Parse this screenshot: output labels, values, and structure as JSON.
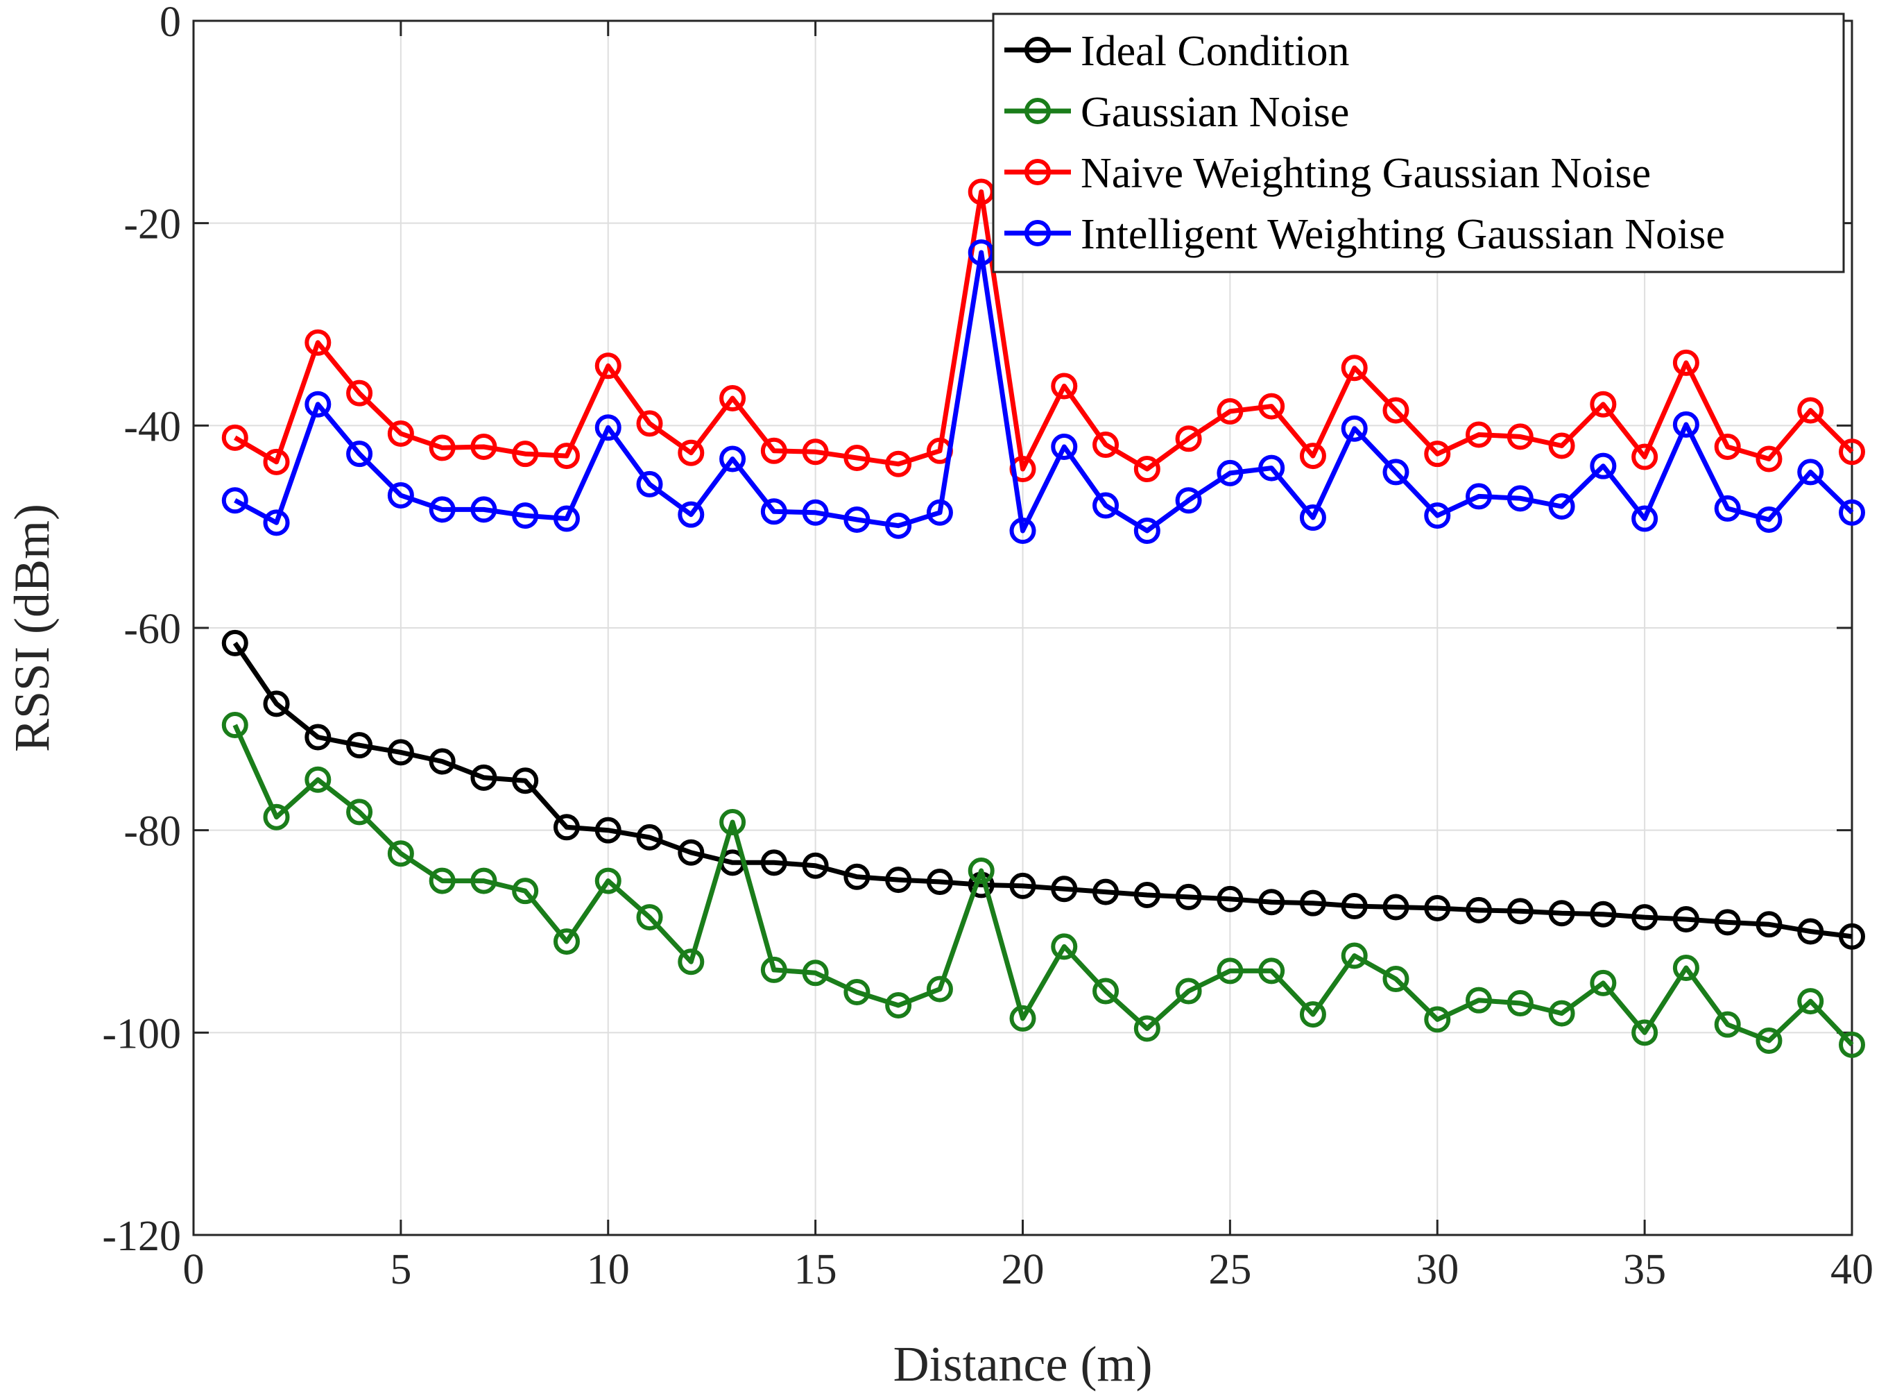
{
  "chart_data": {
    "type": "line",
    "title": "",
    "xlabel": "Distance (m)",
    "ylabel": "RSSI (dBm)",
    "xlim": [
      0,
      40
    ],
    "ylim": [
      -120,
      0
    ],
    "xticks": [
      0,
      5,
      10,
      15,
      20,
      25,
      30,
      35,
      40
    ],
    "yticks": [
      -120,
      -100,
      -80,
      -60,
      -40,
      -20,
      0
    ],
    "grid": true,
    "legend_position": "top-right",
    "x": [
      1,
      2,
      3,
      4,
      5,
      6,
      7,
      8,
      9,
      10,
      11,
      12,
      13,
      14,
      15,
      16,
      17,
      18,
      19,
      20,
      21,
      22,
      23,
      24,
      25,
      26,
      27,
      28,
      29,
      30,
      31,
      32,
      33,
      34,
      35,
      36,
      37,
      38,
      39,
      40
    ],
    "series": [
      {
        "name": "Ideal Condition",
        "color": "#000000",
        "values": [
          -61.5,
          -67.5,
          -70.8,
          -71.6,
          -72.3,
          -73.2,
          -74.8,
          -75.1,
          -79.7,
          -80.0,
          -80.7,
          -82.2,
          -83.2,
          -83.2,
          -83.5,
          -84.6,
          -84.9,
          -85.1,
          -85.4,
          -85.5,
          -85.8,
          -86.1,
          -86.4,
          -86.6,
          -86.8,
          -87.1,
          -87.2,
          -87.5,
          -87.6,
          -87.7,
          -87.9,
          -88.0,
          -88.2,
          -88.3,
          -88.6,
          -88.8,
          -89.1,
          -89.3,
          -90.0,
          -90.5
        ]
      },
      {
        "name": "Gaussian Noise",
        "color": "#1a7d1a",
        "values": [
          -69.6,
          -78.7,
          -75.0,
          -78.2,
          -82.3,
          -85.0,
          -85.0,
          -86.0,
          -91.0,
          -85.0,
          -88.6,
          -93.0,
          -79.2,
          -93.8,
          -94.1,
          -96.0,
          -97.3,
          -95.7,
          -84.0,
          -98.6,
          -91.5,
          -95.9,
          -99.6,
          -95.9,
          -93.9,
          -93.9,
          -98.2,
          -92.4,
          -94.7,
          -98.7,
          -96.8,
          -97.1,
          -98.1,
          -95.1,
          -100.0,
          -93.6,
          -99.2,
          -100.8,
          -96.9,
          -101.2
        ]
      },
      {
        "name": "Naive Weighting Gaussian Noise",
        "color": "#ff0000",
        "values": [
          -41.2,
          -43.6,
          -31.8,
          -36.8,
          -40.8,
          -42.2,
          -42.1,
          -42.8,
          -43.0,
          -34.1,
          -39.8,
          -42.7,
          -37.3,
          -42.5,
          -42.6,
          -43.2,
          -43.8,
          -42.5,
          -16.9,
          -44.3,
          -36.1,
          -41.9,
          -44.3,
          -41.3,
          -38.6,
          -38.1,
          -43.0,
          -34.3,
          -38.5,
          -42.8,
          -40.9,
          -41.1,
          -42.0,
          -37.9,
          -43.1,
          -33.8,
          -42.1,
          -43.3,
          -38.5,
          -42.6
        ]
      },
      {
        "name": "Intelligent Weighting Gaussian Noise",
        "color": "#0000ff",
        "values": [
          -47.4,
          -49.6,
          -37.9,
          -42.8,
          -46.9,
          -48.3,
          -48.3,
          -48.9,
          -49.2,
          -40.2,
          -45.8,
          -48.8,
          -43.3,
          -48.5,
          -48.6,
          -49.3,
          -49.9,
          -48.6,
          -22.9,
          -50.4,
          -42.1,
          -47.9,
          -50.4,
          -47.4,
          -44.7,
          -44.2,
          -49.1,
          -40.3,
          -44.6,
          -48.9,
          -47.0,
          -47.2,
          -48.0,
          -44.0,
          -49.2,
          -39.9,
          -48.2,
          -49.3,
          -44.6,
          -48.6
        ]
      }
    ]
  }
}
